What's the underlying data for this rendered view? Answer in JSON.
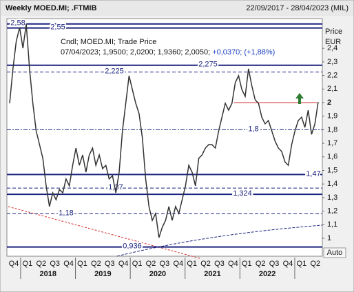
{
  "header": {
    "title": "Weekly MOED.MI; .FTMIB",
    "range": "22/09/2017 - 28/04/2023 (MIL)"
  },
  "info": {
    "line1": "Cndl; MOED.MI; Trade Price",
    "line2": "07/04/2023; 1,9500; 2,0200; 1,9360; 2,0050;",
    "change": "+0,0370; (+1,88%)"
  },
  "button": "Auto",
  "chart_data": {
    "type": "line",
    "y_label": "Price",
    "y_unit": "EUR",
    "color": "#333333",
    "values": [
      1.995,
      2.249,
      2.452,
      2.553,
      2.401,
      2.579,
      2.249,
      1.995,
      1.792,
      1.69,
      1.589,
      1.386,
      1.234,
      1.335,
      1.284,
      1.36,
      1.335,
      1.437,
      1.386,
      1.538,
      1.665,
      1.538,
      1.614,
      1.487,
      1.614,
      1.665,
      1.538,
      1.614,
      1.513,
      1.538,
      1.437,
      1.462,
      1.335,
      1.487,
      1.792,
      1.995,
      2.198,
      2.096,
      1.995,
      1.919,
      1.741,
      1.437,
      1.234,
      1.132,
      1.183,
      1.005,
      1.081,
      1.132,
      1.234,
      1.132,
      1.234,
      1.183,
      1.284,
      1.386,
      1.538,
      1.487,
      1.386,
      1.589,
      1.614,
      1.665,
      1.69,
      1.69,
      1.665,
      1.792,
      1.893,
      1.995,
      1.944,
      1.995,
      2.147,
      2.198,
      2.096,
      2.046,
      2.249,
      2.122,
      2.02,
      1.995,
      1.893,
      1.843,
      1.868,
      1.792,
      1.716,
      1.665,
      1.64,
      1.563,
      1.538,
      1.69,
      1.792,
      1.868,
      1.893,
      1.817,
      1.944,
      1.766,
      1.843,
      2.005
    ],
    "quarters": [
      "Q4",
      "Q1",
      "Q2",
      "Q3",
      "Q4",
      "Q1",
      "Q2",
      "Q3",
      "Q4",
      "Q1",
      "Q2",
      "Q3",
      "Q4",
      "Q1",
      "Q2",
      "Q3",
      "Q4",
      "Q1",
      "Q2",
      "Q3",
      "Q4",
      "Q1",
      "Q2"
    ],
    "years": [
      "2018",
      "2019",
      "2020",
      "2021",
      "2022"
    ],
    "ylim": [
      0.878,
      2.604
    ],
    "yticks": [
      {
        "value": 1,
        "label": "1"
      },
      {
        "value": 1.1,
        "label": "1,1"
      },
      {
        "value": 1.2,
        "label": "1,2"
      },
      {
        "value": 1.3,
        "label": "1,3"
      },
      {
        "value": 1.4,
        "label": "1,4"
      },
      {
        "value": 1.5,
        "label": "1,5"
      },
      {
        "value": 1.6,
        "label": "1,6"
      },
      {
        "value": 1.7,
        "label": "1,7"
      },
      {
        "value": 1.8,
        "label": "1,8"
      },
      {
        "value": 1.9,
        "label": "1,9"
      },
      2,
      {
        "value": 2.1,
        "label": "2,1"
      },
      {
        "value": 2.2,
        "label": "2,2"
      },
      {
        "value": 2.3,
        "label": "2,3"
      },
      {
        "value": 2.4,
        "label": "2,4"
      }
    ],
    "levels": [
      {
        "value": 2.58,
        "label": "2,58",
        "dash": "solid"
      },
      {
        "value": 2.55,
        "label": "2,55",
        "dash": "solid"
      },
      {
        "value": 2.275,
        "label": "2,275",
        "dash": "solid"
      },
      {
        "value": 2.225,
        "label": "2,225",
        "dash": "dashed"
      },
      {
        "value": 1.8,
        "label": "1,8",
        "dash": "dashdot"
      },
      {
        "value": 1.47,
        "label": "1,47",
        "dash": "solid"
      },
      {
        "value": 1.37,
        "label": "1,37",
        "dash": "dashed"
      },
      {
        "value": 1.324,
        "label": "1,324",
        "dash": "solid"
      },
      {
        "value": 1.18,
        "label": "1,18",
        "dash": "dashed"
      },
      {
        "value": 0.936,
        "label": "0,936",
        "dash": "solid"
      }
    ],
    "level_color": "#1a237e"
  }
}
